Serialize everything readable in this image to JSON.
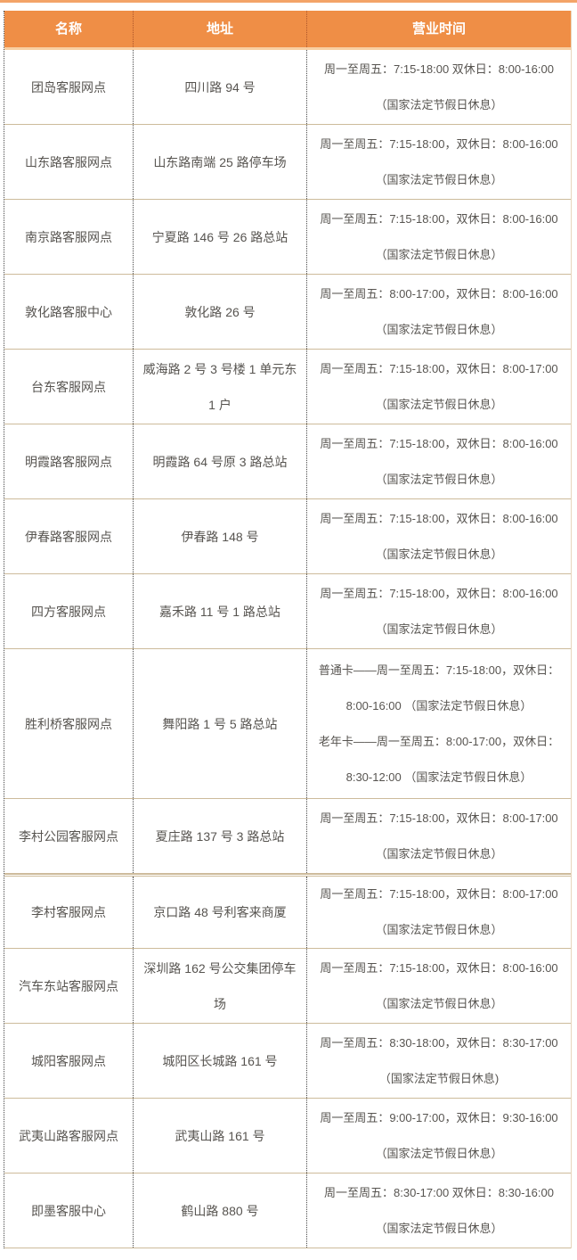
{
  "table": {
    "columns": [
      {
        "label": "名称"
      },
      {
        "label": "地址"
      },
      {
        "label": "营业时间"
      }
    ],
    "rows": [
      {
        "name": "团岛客服网点",
        "address": "四川路 94 号",
        "hours": [
          "周一至周五：7:15-18:00 双休日：8:00-16:00",
          "（国家法定节假日休息）"
        ],
        "section_start": false
      },
      {
        "name": "山东路客服网点",
        "address": "山东路南端 25 路停车场",
        "hours": [
          "周一至周五：7:15-18:00，双休日：8:00-16:00",
          "（国家法定节假日休息）"
        ],
        "section_start": false
      },
      {
        "name": "南京路客服网点",
        "address": "宁夏路 146 号 26 路总站",
        "hours": [
          "周一至周五：7:15-18:00，双休日：8:00-16:00",
          "（国家法定节假日休息）"
        ],
        "section_start": false
      },
      {
        "name": "敦化路客服中心",
        "address": "敦化路 26 号",
        "hours": [
          "周一至周五：8:00-17:00，双休日：8:00-16:00",
          "（国家法定节假日休息）"
        ],
        "section_start": false
      },
      {
        "name": "台东客服网点",
        "address": "威海路 2 号 3 号楼 1 单元东 1 户",
        "hours": [
          "周一至周五：7:15-18:00，双休日：8:00-17:00",
          "（国家法定节假日休息）"
        ],
        "section_start": false
      },
      {
        "name": "明霞路客服网点",
        "address": "明霞路 64 号原 3 路总站",
        "hours": [
          "周一至周五：7:15-18:00，双休日：8:00-16:00",
          "（国家法定节假日休息）"
        ],
        "section_start": false
      },
      {
        "name": "伊春路客服网点",
        "address": "伊春路 148 号",
        "hours": [
          "周一至周五：7:15-18:00，双休日：8:00-16:00",
          "（国家法定节假日休息）"
        ],
        "section_start": false
      },
      {
        "name": "四方客服网点",
        "address": "嘉禾路 11 号 1 路总站",
        "hours": [
          "周一至周五：7:15-18:00，双休日：8:00-16:00",
          "（国家法定节假日休息）"
        ],
        "section_start": false
      },
      {
        "name": "胜利桥客服网点",
        "address": "舞阳路 1 号 5 路总站",
        "hours": [
          "普通卡——周一至周五：7:15-18:00，双休日：",
          "8:00-16:00 （国家法定节假日休息）",
          "老年卡——周一至周五：8:00-17:00，双休日：",
          "8:30-12:00 （国家法定节假日休息）"
        ],
        "section_start": false
      },
      {
        "name": "李村公园客服网点",
        "address": "夏庄路 137 号 3 路总站",
        "hours": [
          "周一至周五：7:15-18:00，双休日：8:00-17:00",
          "（国家法定节假日休息）"
        ],
        "section_start": false
      },
      {
        "name": "李村客服网点",
        "address": "京口路 48 号利客来商厦",
        "hours": [
          "周一至周五：7:15-18:00，双休日：8:00-17:00",
          "（国家法定节假日休息）"
        ],
        "section_start": true
      },
      {
        "name": "汽车东站客服网点",
        "address": "深圳路 162 号公交集团停车场",
        "hours": [
          "周一至周五：7:15-18:00，双休日：8:00-16:00",
          "（国家法定节假日休息）"
        ],
        "section_start": false
      },
      {
        "name": "城阳客服网点",
        "address": "城阳区长城路 161 号",
        "hours": [
          "周一至周五：8:30-18:00，双休日：8:30-17:00",
          "（国家法定节假日休息)"
        ],
        "section_start": false
      },
      {
        "name": "武夷山路客服网点",
        "address": "武夷山路 161 号",
        "hours": [
          "周一至周五：9:00-17:00，双休日：9:30-16:00",
          "（国家法定节假日休息）"
        ],
        "section_start": false
      },
      {
        "name": "即墨客服中心",
        "address": "鹤山路 880 号",
        "hours": [
          "周一至周五：8:30-17:00 双休日：8:30-16:00",
          "（国家法定节假日休息）"
        ],
        "section_start": false
      }
    ]
  },
  "colors": {
    "header_bg": "#EF8E46",
    "header_accent": "#F8CFA3",
    "top_strip": "#F3A468",
    "row_border": "#CDBB9B",
    "edge_tan": "#E8D5BC",
    "dotted": "#4a4a4a",
    "text": "#575450"
  }
}
